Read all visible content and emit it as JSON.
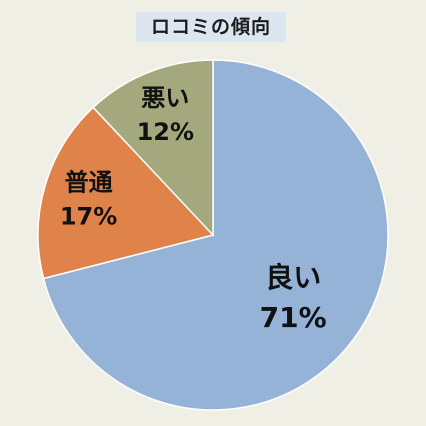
{
  "chart_data": {
    "type": "pie",
    "title": "ロコミの傾向",
    "slices": [
      {
        "label": "良い",
        "value": 71,
        "value_label": "71%",
        "color": "#95b3d7"
      },
      {
        "label": "普通",
        "value": 17,
        "value_label": "17%",
        "color": "#e0834a"
      },
      {
        "label": "悪い",
        "value": 12,
        "value_label": "12%",
        "color": "#a3a97d"
      }
    ],
    "start_angle": "12 o'clock",
    "direction": "clockwise",
    "slice_stroke_color": "#ffffff",
    "legend": "none"
  }
}
